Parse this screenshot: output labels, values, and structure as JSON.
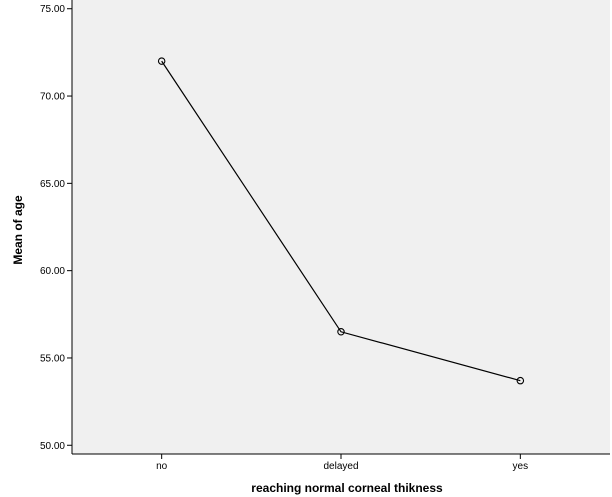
{
  "chart_data": {
    "type": "line",
    "title": "",
    "xlabel": "reaching normal corneal thikness",
    "ylabel": "Mean of age",
    "categories": [
      "no",
      "delayed",
      "yes"
    ],
    "series": [
      {
        "values": [
          72.0,
          56.5,
          53.7
        ]
      }
    ],
    "ylim": [
      49.5,
      75.5
    ],
    "yticks": [
      "50.00",
      "55.00",
      "60.00",
      "65.00",
      "70.00",
      "75.00"
    ],
    "grid": false,
    "legend": "none",
    "colors": {
      "plot_background": "#f0f0f0",
      "line": "#000000",
      "axis": "#000000"
    }
  }
}
